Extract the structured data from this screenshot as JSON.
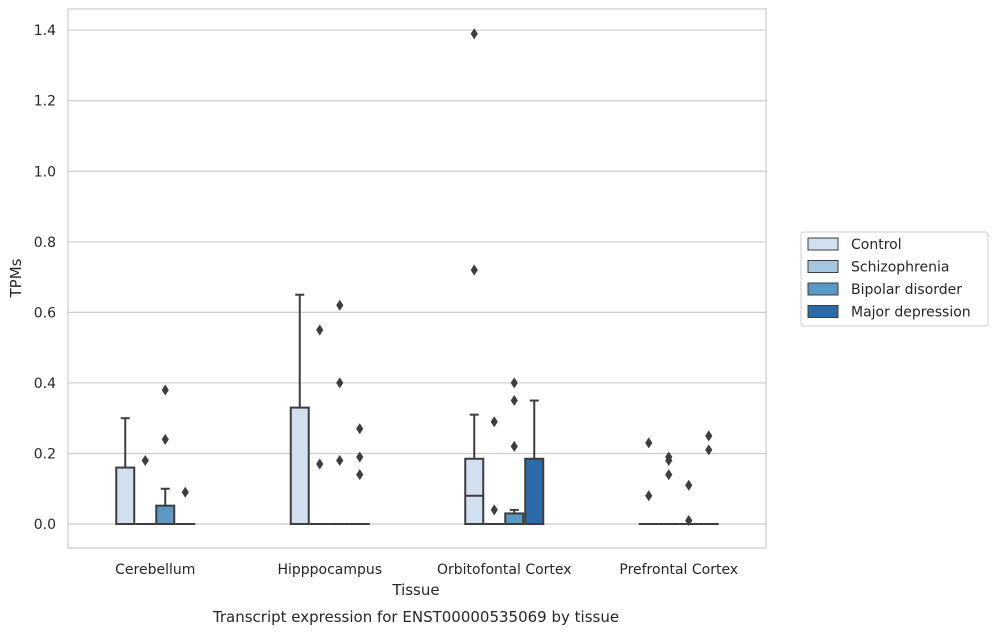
{
  "chart_data": {
    "type": "box",
    "title": "Transcript expression for ENST00000535069 by tissue",
    "xlabel": "Tissue",
    "ylabel": "TPMs",
    "ylim": [
      -0.068,
      1.46
    ],
    "yticks": [
      0.0,
      0.2,
      0.4,
      0.6,
      0.8,
      1.0,
      1.2,
      1.4
    ],
    "ytick_labels": [
      "0.0",
      "0.2",
      "0.4",
      "0.6",
      "0.8",
      "1.0",
      "1.2",
      "1.4"
    ],
    "grid": "horizontal",
    "legend_placement": "outside-right",
    "categories": [
      "Cerebellum",
      "Hipppocampus",
      "Orbitofontal Cortex",
      "Prefrontal Cortex"
    ],
    "series": [
      {
        "name": "Control",
        "color": "#d1e0ef",
        "boxes": [
          {
            "q1": 0.0,
            "median": 0.0,
            "q3": 0.16,
            "whisker_low": 0.0,
            "whisker_high": 0.3,
            "outliers": []
          },
          {
            "q1": 0.0,
            "median": 0.0,
            "q3": 0.33,
            "whisker_low": 0.0,
            "whisker_high": 0.65,
            "outliers": []
          },
          {
            "q1": 0.0,
            "median": 0.08,
            "q3": 0.185,
            "whisker_low": 0.0,
            "whisker_high": 0.31,
            "outliers": [
              0.72,
              1.39
            ]
          },
          {
            "q1": 0.0,
            "median": 0.0,
            "q3": 0.0,
            "whisker_low": 0.0,
            "whisker_high": 0.0,
            "outliers": [
              0.08,
              0.23
            ]
          }
        ]
      },
      {
        "name": "Schizophrenia",
        "color": "#a5c6df",
        "boxes": [
          {
            "q1": 0.0,
            "median": 0.0,
            "q3": 0.0,
            "whisker_low": 0.0,
            "whisker_high": 0.0,
            "outliers": [
              0.18
            ]
          },
          {
            "q1": 0.0,
            "median": 0.0,
            "q3": 0.0,
            "whisker_low": 0.0,
            "whisker_high": 0.0,
            "outliers": [
              0.17,
              0.55
            ]
          },
          {
            "q1": 0.0,
            "median": 0.0,
            "q3": 0.0,
            "whisker_low": 0.0,
            "whisker_high": 0.0,
            "outliers": [
              0.04,
              0.29
            ]
          },
          {
            "q1": 0.0,
            "median": 0.0,
            "q3": 0.0,
            "whisker_low": 0.0,
            "whisker_high": 0.0,
            "outliers": [
              0.14,
              0.18,
              0.19
            ]
          }
        ]
      },
      {
        "name": "Bipolar disorder",
        "color": "#5b99c4",
        "boxes": [
          {
            "q1": 0.0,
            "median": 0.0,
            "q3": 0.052,
            "whisker_low": 0.0,
            "whisker_high": 0.1,
            "outliers": [
              0.24,
              0.38
            ]
          },
          {
            "q1": 0.0,
            "median": 0.0,
            "q3": 0.0,
            "whisker_low": 0.0,
            "whisker_high": 0.0,
            "outliers": [
              0.18,
              0.4,
              0.62
            ]
          },
          {
            "q1": 0.0,
            "median": 0.0,
            "q3": 0.03,
            "whisker_low": 0.0,
            "whisker_high": 0.04,
            "outliers": [
              0.22,
              0.35,
              0.4
            ]
          },
          {
            "q1": 0.0,
            "median": 0.0,
            "q3": 0.0,
            "whisker_low": 0.0,
            "whisker_high": 0.0,
            "outliers": [
              0.01,
              0.11
            ]
          }
        ]
      },
      {
        "name": "Major depression",
        "color": "#2a6ba8",
        "boxes": [
          {
            "q1": 0.0,
            "median": 0.0,
            "q3": 0.0,
            "whisker_low": 0.0,
            "whisker_high": 0.0,
            "outliers": [
              0.09
            ]
          },
          {
            "q1": 0.0,
            "median": 0.0,
            "q3": 0.0,
            "whisker_low": 0.0,
            "whisker_high": 0.0,
            "outliers": [
              0.14,
              0.19,
              0.27
            ]
          },
          {
            "q1": 0.0,
            "median": 0.0,
            "q3": 0.185,
            "whisker_low": 0.0,
            "whisker_high": 0.35,
            "outliers": []
          },
          {
            "q1": 0.0,
            "median": 0.0,
            "q3": 0.0,
            "whisker_low": 0.0,
            "whisker_high": 0.0,
            "outliers": [
              0.21,
              0.25
            ]
          }
        ]
      }
    ]
  }
}
